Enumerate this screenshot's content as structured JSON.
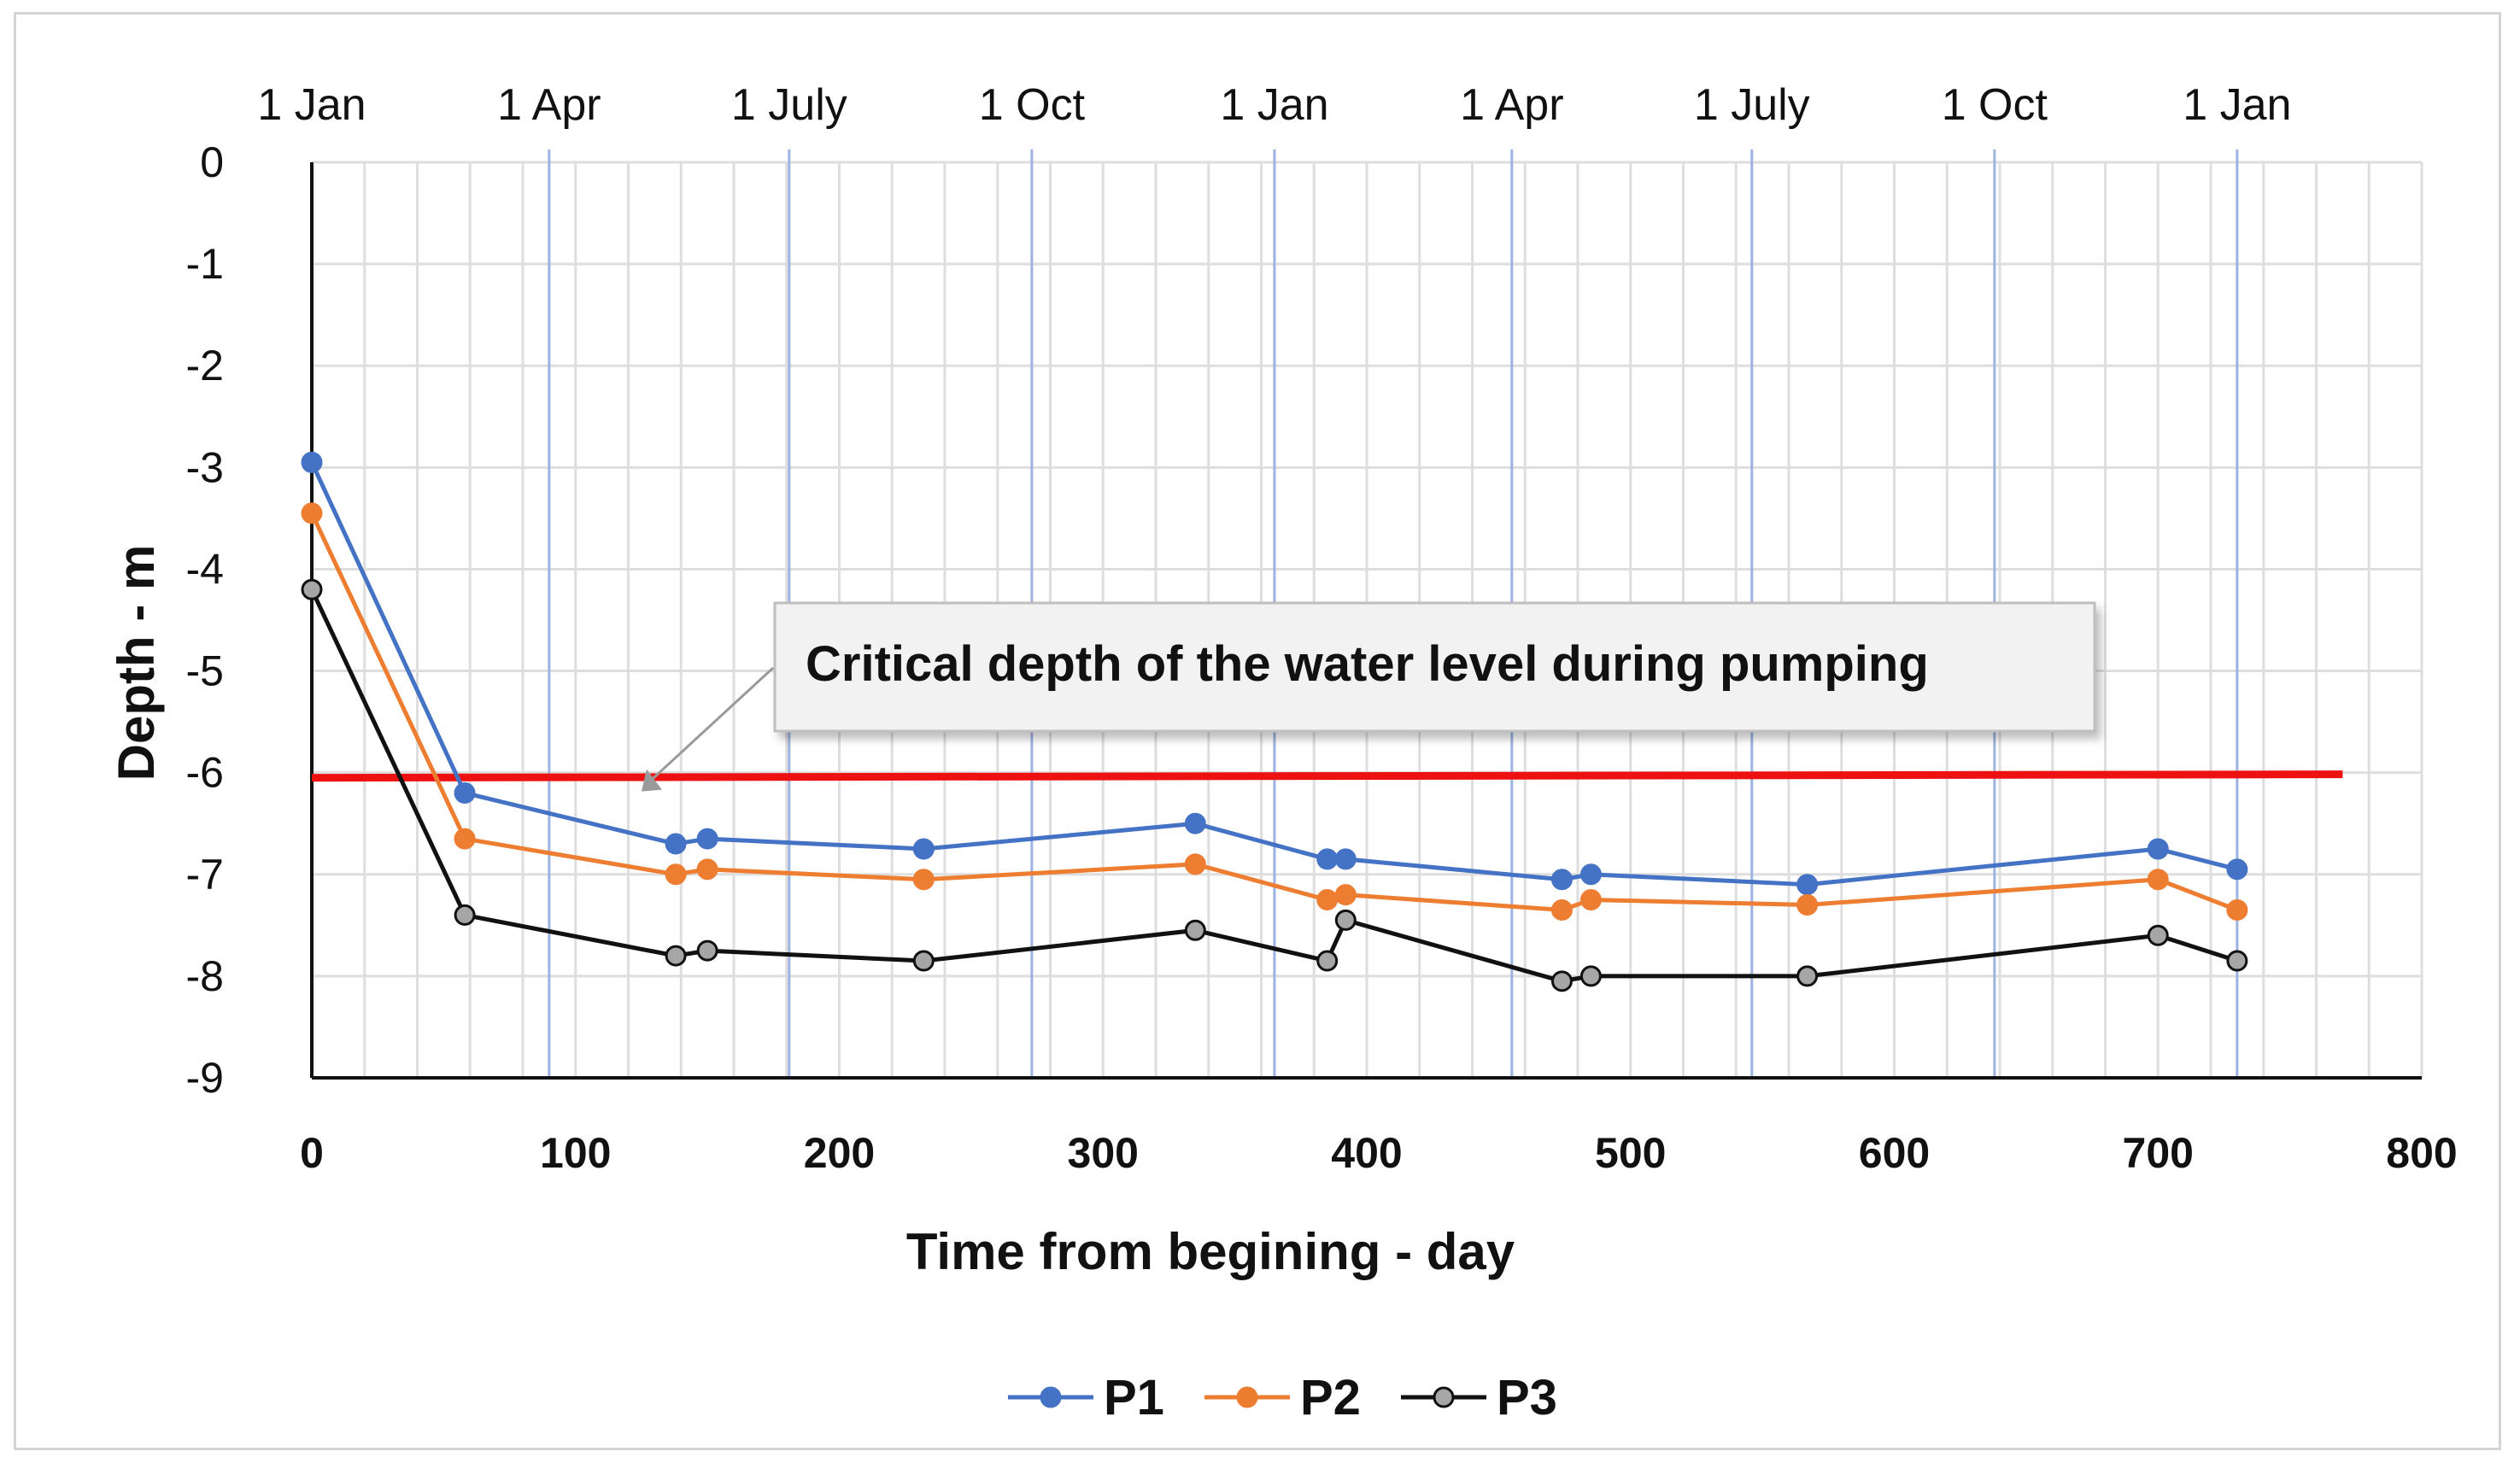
{
  "chart_data": {
    "type": "line",
    "xlabel": "Time from begining - day",
    "ylabel": "Depth - m",
    "xlim": [
      0,
      800
    ],
    "ylim": [
      -9,
      0
    ],
    "x_ticks": [
      0,
      100,
      200,
      300,
      400,
      500,
      600,
      700,
      800
    ],
    "y_ticks": [
      0,
      -1,
      -2,
      -3,
      -4,
      -5,
      -6,
      -7,
      -8,
      -9
    ],
    "grid": true,
    "date_markers": [
      {
        "label": "1 Jan",
        "x": 0
      },
      {
        "label": "1 Apr",
        "x": 90
      },
      {
        "label": "1 July",
        "x": 181
      },
      {
        "label": "1 Oct",
        "x": 273
      },
      {
        "label": "1 Jan",
        "x": 365
      },
      {
        "label": "1 Apr",
        "x": 455
      },
      {
        "label": "1 July",
        "x": 546
      },
      {
        "label": "1 Oct",
        "x": 638
      },
      {
        "label": "1 Jan",
        "x": 730
      }
    ],
    "reference_line": {
      "y": -6.05,
      "x_range": [
        0,
        770
      ],
      "color": "#ee1111"
    },
    "annotation": {
      "text": "Critical  depth of the water level during pumping",
      "points_to_x": 125,
      "points_to_y": -6.0
    },
    "series": [
      {
        "name": "P1",
        "color": "#4472c4",
        "x": [
          0,
          58,
          138,
          150,
          232,
          335,
          385,
          392,
          474,
          485,
          567,
          700,
          730
        ],
        "y": [
          -2.95,
          -6.2,
          -6.7,
          -6.65,
          -6.75,
          -6.5,
          -6.85,
          -6.85,
          -7.05,
          -7.0,
          -7.1,
          -6.75,
          -6.95
        ]
      },
      {
        "name": "P2",
        "color": "#ed7d31",
        "x": [
          0,
          58,
          138,
          150,
          232,
          335,
          385,
          392,
          474,
          485,
          567,
          700,
          730
        ],
        "y": [
          -3.45,
          -6.65,
          -7.0,
          -6.95,
          -7.05,
          -6.9,
          -7.25,
          -7.2,
          -7.35,
          -7.25,
          -7.3,
          -7.05,
          -7.35
        ]
      },
      {
        "name": "P3",
        "color": "#111111",
        "marker_fill": "#a6a6a6",
        "x": [
          0,
          58,
          138,
          150,
          232,
          335,
          385,
          392,
          474,
          485,
          567,
          700,
          730
        ],
        "y": [
          -4.2,
          -7.4,
          -7.8,
          -7.75,
          -7.85,
          -7.55,
          -7.85,
          -7.45,
          -8.05,
          -8.0,
          -8.0,
          -7.6,
          -7.85
        ]
      }
    ],
    "legend": [
      "P1",
      "P2",
      "P3"
    ]
  }
}
